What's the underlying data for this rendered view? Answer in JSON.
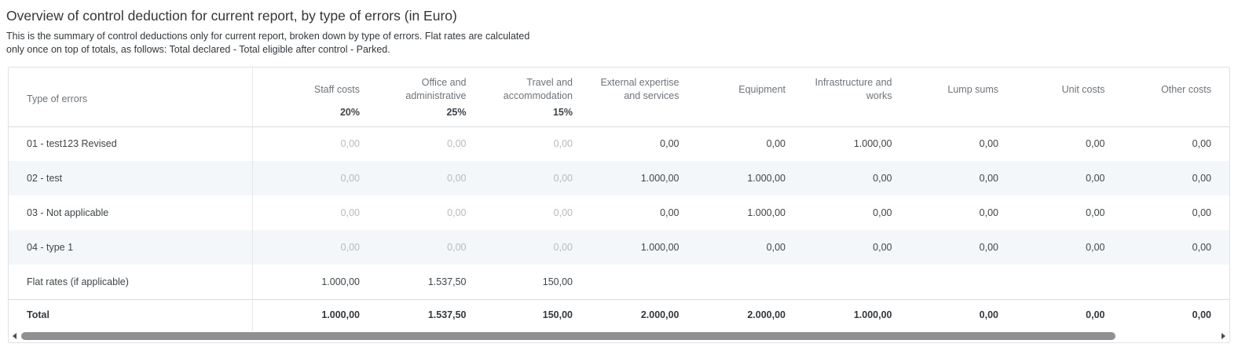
{
  "title": "Overview of control deduction for current report, by type of errors (in Euro)",
  "subtitle_line1": "This is the summary of control deductions only for current report, broken down by type of errors. Flat rates are calculated",
  "subtitle_line2": "only once on top of totals, as follows: Total declared - Total eligible after control - Parked.",
  "table": {
    "header": {
      "type_label": "Type of errors",
      "columns": [
        {
          "label": "Staff costs",
          "rate": "20%"
        },
        {
          "label": "Office and administrative",
          "rate": "25%"
        },
        {
          "label": "Travel and accommodation",
          "rate": "15%"
        },
        {
          "label": "External expertise and services",
          "rate": ""
        },
        {
          "label": "Equipment",
          "rate": ""
        },
        {
          "label": "Infrastructure and works",
          "rate": ""
        },
        {
          "label": "Lump sums",
          "rate": ""
        },
        {
          "label": "Unit costs",
          "rate": ""
        },
        {
          "label": "Other costs",
          "rate": ""
        }
      ]
    },
    "rows": [
      {
        "label": "01 - test123 Revised",
        "cells": [
          "0,00",
          "0,00",
          "0,00",
          "0,00",
          "0,00",
          "1.000,00",
          "0,00",
          "0,00",
          "0,00"
        ]
      },
      {
        "label": "02 - test",
        "cells": [
          "0,00",
          "0,00",
          "0,00",
          "1.000,00",
          "1.000,00",
          "0,00",
          "0,00",
          "0,00",
          "0,00"
        ]
      },
      {
        "label": "03 - Not applicable",
        "cells": [
          "0,00",
          "0,00",
          "0,00",
          "0,00",
          "1.000,00",
          "0,00",
          "0,00",
          "0,00",
          "0,00"
        ]
      },
      {
        "label": "04 - type 1",
        "cells": [
          "0,00",
          "0,00",
          "0,00",
          "1.000,00",
          "0,00",
          "0,00",
          "0,00",
          "0,00",
          "0,00"
        ]
      },
      {
        "label": "Flat rates (if applicable)",
        "cells": [
          "1.000,00",
          "1.537,50",
          "150,00",
          "",
          "",
          "",
          "",
          "",
          ""
        ]
      }
    ],
    "total": {
      "label": "Total",
      "cells": [
        "1.000,00",
        "1.537,50",
        "150,00",
        "2.000,00",
        "2.000,00",
        "1.000,00",
        "0,00",
        "0,00",
        "0,00"
      ]
    }
  },
  "colors": {
    "alt_row_background": "#f4f7fa",
    "muted_value_text": "#b7babd",
    "header_text": "#6e747a",
    "scrollbar_thumb": "#8e9092"
  }
}
